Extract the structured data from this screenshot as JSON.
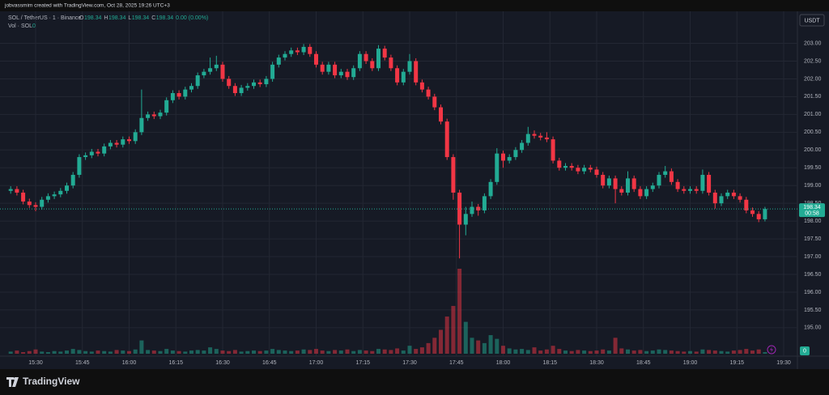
{
  "header": {
    "credit": "jobvassmim created with TradingView.com, Oct 28, 2025 19:26 UTC+3"
  },
  "brand": "TradingView",
  "chart_data": {
    "type": "candlestick",
    "symbol": "SOL / TetherUS · 1 · Binance",
    "legend": [
      {
        "key": "O",
        "value": 198.34
      },
      {
        "key": "H",
        "value": 198.34
      },
      {
        "key": "L",
        "value": 198.34
      },
      {
        "key": "C",
        "value": 198.34
      }
    ],
    "change": "0.00 (0.00%)",
    "volume_title": "Vol · SOL",
    "volume_value": 0,
    "currency": "USDT",
    "countdown": "00:58",
    "up_color": "#22ab94",
    "down_color": "#f23645",
    "grid": true,
    "ylim": [
      194.2,
      203.9
    ],
    "yticks": [
      {
        "value": 195,
        "label": "195.00"
      },
      {
        "value": 195.5,
        "label": "195.50"
      },
      {
        "value": 196,
        "label": "196.00"
      },
      {
        "value": 196.5,
        "label": "196.50"
      },
      {
        "value": 197,
        "label": "197.00"
      },
      {
        "value": 197.5,
        "label": "197.50"
      },
      {
        "value": 198,
        "label": "198.00"
      },
      {
        "value": 198.5,
        "label": "198.50"
      },
      {
        "value": 199,
        "label": "199.00"
      },
      {
        "value": 199.5,
        "label": "199.50"
      },
      {
        "value": 200,
        "label": "200.00"
      },
      {
        "value": 200.5,
        "label": "200.50"
      },
      {
        "value": 201,
        "label": "201.00"
      },
      {
        "value": 201.5,
        "label": "201.50"
      },
      {
        "value": 202,
        "label": "202.00"
      },
      {
        "value": 202.5,
        "label": "202.50"
      },
      {
        "value": 203,
        "label": "203.00"
      }
    ],
    "xticks": [
      {
        "value": 4,
        "label": "15:30"
      },
      {
        "value": 11.5,
        "label": "15:45"
      },
      {
        "value": 19,
        "label": "16:00"
      },
      {
        "value": 26.5,
        "label": "16:15"
      },
      {
        "value": 34,
        "label": "16:30"
      },
      {
        "value": 41.5,
        "label": "16:45"
      },
      {
        "value": 49,
        "label": "17:00"
      },
      {
        "value": 56.5,
        "label": "17:15"
      },
      {
        "value": 64,
        "label": "17:30"
      },
      {
        "value": 71.5,
        "label": "17:45"
      },
      {
        "value": 79,
        "label": "18:00"
      },
      {
        "value": 86.5,
        "label": "18:15"
      },
      {
        "value": 94,
        "label": "18:30"
      },
      {
        "value": 101.5,
        "label": "18:45"
      },
      {
        "value": 109,
        "label": "19:00"
      },
      {
        "value": 116.5,
        "label": "19:15"
      },
      {
        "value": 124,
        "label": "19:30"
      }
    ],
    "ohlc": [
      [
        198.85,
        198.98,
        198.77,
        198.9
      ],
      [
        198.9,
        198.98,
        198.72,
        198.8
      ],
      [
        198.8,
        198.88,
        198.47,
        198.55
      ],
      [
        198.55,
        198.63,
        198.37,
        198.45
      ],
      [
        198.45,
        198.53,
        198.28,
        198.4
      ],
      [
        198.4,
        198.68,
        198.32,
        198.6
      ],
      [
        198.6,
        198.78,
        198.52,
        198.7
      ],
      [
        198.7,
        198.83,
        198.62,
        198.75
      ],
      [
        198.75,
        198.93,
        198.67,
        198.85
      ],
      [
        198.85,
        199.08,
        198.77,
        199.0
      ],
      [
        199.0,
        199.38,
        198.92,
        199.3
      ],
      [
        199.3,
        199.88,
        199.22,
        199.8
      ],
      [
        199.8,
        199.93,
        199.72,
        199.85
      ],
      [
        199.85,
        200.03,
        199.77,
        199.95
      ],
      [
        199.95,
        200.03,
        199.82,
        199.9
      ],
      [
        199.9,
        200.18,
        199.82,
        200.1
      ],
      [
        200.1,
        200.28,
        200.02,
        200.2
      ],
      [
        200.2,
        200.28,
        200.07,
        200.15
      ],
      [
        200.15,
        200.38,
        200.07,
        200.3
      ],
      [
        200.3,
        200.38,
        200.17,
        200.25
      ],
      [
        200.25,
        200.58,
        200.17,
        200.5
      ],
      [
        200.5,
        201.7,
        200.42,
        200.9
      ],
      [
        200.9,
        201.08,
        200.82,
        201.0
      ],
      [
        201.0,
        201.08,
        200.87,
        200.95
      ],
      [
        200.95,
        201.13,
        200.87,
        201.05
      ],
      [
        201.05,
        201.48,
        200.97,
        201.4
      ],
      [
        201.4,
        201.68,
        201.32,
        201.6
      ],
      [
        201.6,
        201.68,
        201.42,
        201.5
      ],
      [
        201.5,
        201.78,
        201.42,
        201.7
      ],
      [
        201.7,
        201.88,
        201.62,
        201.8
      ],
      [
        201.8,
        202.18,
        201.72,
        202.1
      ],
      [
        202.1,
        202.28,
        202.02,
        202.2
      ],
      [
        202.2,
        202.6,
        202.12,
        202.3
      ],
      [
        202.3,
        202.65,
        202.22,
        202.4
      ],
      [
        202.4,
        202.48,
        201.92,
        202.0
      ],
      [
        202.0,
        202.08,
        201.72,
        201.8
      ],
      [
        201.8,
        201.88,
        201.52,
        201.6
      ],
      [
        201.6,
        201.83,
        201.52,
        201.75
      ],
      [
        201.75,
        201.88,
        201.67,
        201.8
      ],
      [
        201.8,
        201.98,
        201.72,
        201.9
      ],
      [
        201.9,
        201.98,
        201.77,
        201.85
      ],
      [
        201.85,
        202.08,
        201.77,
        202.0
      ],
      [
        202.0,
        202.48,
        201.92,
        202.4
      ],
      [
        202.4,
        202.68,
        202.32,
        202.6
      ],
      [
        202.6,
        202.78,
        202.52,
        202.7
      ],
      [
        202.7,
        202.88,
        202.62,
        202.8
      ],
      [
        202.8,
        202.88,
        202.67,
        202.75
      ],
      [
        202.75,
        202.98,
        202.67,
        202.9
      ],
      [
        202.9,
        202.98,
        202.62,
        202.7
      ],
      [
        202.7,
        202.78,
        202.32,
        202.4
      ],
      [
        202.4,
        202.48,
        202.12,
        202.2
      ],
      [
        202.2,
        202.48,
        202.12,
        202.4
      ],
      [
        202.4,
        202.48,
        202.02,
        202.1
      ],
      [
        202.1,
        202.28,
        202.02,
        202.2
      ],
      [
        202.2,
        202.28,
        201.97,
        202.05
      ],
      [
        202.05,
        202.38,
        201.97,
        202.3
      ],
      [
        202.3,
        202.78,
        202.22,
        202.7
      ],
      [
        202.7,
        202.78,
        202.42,
        202.5
      ],
      [
        202.5,
        202.58,
        202.22,
        202.3
      ],
      [
        202.3,
        202.95,
        202.22,
        202.85
      ],
      [
        202.85,
        202.93,
        202.52,
        202.6
      ],
      [
        202.6,
        202.68,
        202.22,
        202.3
      ],
      [
        202.3,
        202.38,
        201.82,
        201.9
      ],
      [
        201.9,
        202.28,
        201.82,
        202.2
      ],
      [
        202.2,
        202.7,
        202.12,
        202.5
      ],
      [
        202.5,
        202.58,
        201.82,
        201.9
      ],
      [
        201.9,
        201.98,
        201.62,
        201.7
      ],
      [
        201.7,
        201.78,
        201.42,
        201.5
      ],
      [
        201.5,
        201.58,
        201.12,
        201.2
      ],
      [
        201.2,
        201.28,
        200.72,
        200.8
      ],
      [
        200.8,
        200.88,
        199.72,
        199.8
      ],
      [
        199.8,
        199.88,
        198.6,
        198.8
      ],
      [
        198.8,
        198.88,
        196.95,
        197.9
      ],
      [
        197.9,
        198.4,
        197.6,
        198.2
      ],
      [
        198.2,
        198.55,
        198.12,
        198.4
      ],
      [
        198.4,
        198.48,
        198.15,
        198.3
      ],
      [
        198.3,
        198.78,
        198.22,
        198.7
      ],
      [
        198.7,
        199.18,
        198.62,
        199.1
      ],
      [
        199.1,
        200.05,
        199.02,
        199.9
      ],
      [
        199.9,
        199.98,
        199.5,
        199.7
      ],
      [
        199.7,
        199.88,
        199.62,
        199.8
      ],
      [
        199.8,
        200.08,
        199.72,
        200.0
      ],
      [
        200.0,
        200.28,
        199.92,
        200.2
      ],
      [
        200.2,
        200.65,
        200.12,
        200.45
      ],
      [
        200.45,
        200.55,
        200.32,
        200.4
      ],
      [
        200.4,
        200.48,
        200.27,
        200.35
      ],
      [
        200.35,
        200.5,
        200.22,
        200.3
      ],
      [
        200.3,
        200.38,
        199.62,
        199.7
      ],
      [
        199.7,
        199.78,
        199.42,
        199.5
      ],
      [
        199.5,
        199.63,
        199.42,
        199.55
      ],
      [
        199.55,
        199.63,
        199.42,
        199.5
      ],
      [
        199.5,
        199.58,
        199.32,
        199.4
      ],
      [
        199.4,
        199.58,
        199.32,
        199.5
      ],
      [
        199.5,
        199.58,
        199.37,
        199.45
      ],
      [
        199.45,
        199.53,
        199.22,
        199.3
      ],
      [
        199.3,
        199.38,
        198.92,
        199.0
      ],
      [
        199.0,
        199.28,
        198.92,
        199.2
      ],
      [
        199.2,
        199.28,
        198.5,
        198.9
      ],
      [
        198.9,
        198.98,
        198.72,
        198.8
      ],
      [
        198.8,
        199.4,
        198.72,
        199.2
      ],
      [
        199.2,
        199.28,
        198.82,
        198.9
      ],
      [
        198.9,
        198.98,
        198.62,
        198.7
      ],
      [
        198.7,
        198.98,
        198.62,
        198.9
      ],
      [
        198.9,
        199.08,
        198.82,
        199.0
      ],
      [
        199.0,
        199.38,
        198.92,
        199.3
      ],
      [
        199.3,
        199.55,
        199.22,
        199.4
      ],
      [
        199.4,
        199.48,
        199.02,
        199.1
      ],
      [
        199.1,
        199.18,
        198.82,
        198.9
      ],
      [
        198.9,
        198.98,
        198.77,
        198.85
      ],
      [
        198.85,
        198.98,
        198.77,
        198.9
      ],
      [
        198.9,
        198.98,
        198.77,
        198.85
      ],
      [
        198.85,
        199.45,
        198.77,
        199.3
      ],
      [
        199.3,
        199.38,
        198.72,
        198.8
      ],
      [
        198.8,
        198.88,
        198.35,
        198.5
      ],
      [
        198.5,
        198.78,
        198.42,
        198.7
      ],
      [
        198.7,
        198.88,
        198.62,
        198.8
      ],
      [
        198.8,
        198.88,
        198.62,
        198.7
      ],
      [
        198.7,
        198.78,
        198.52,
        198.6
      ],
      [
        198.6,
        198.68,
        198.22,
        198.3
      ],
      [
        198.3,
        198.38,
        198.12,
        198.2
      ],
      [
        198.2,
        198.28,
        197.97,
        198.05
      ],
      [
        198.05,
        198.4,
        197.99,
        198.34
      ]
    ],
    "volume": [
      40,
      60,
      30,
      50,
      80,
      40,
      30,
      50,
      40,
      60,
      90,
      70,
      50,
      40,
      60,
      50,
      40,
      70,
      60,
      50,
      80,
      250,
      70,
      60,
      50,
      90,
      60,
      50,
      40,
      60,
      70,
      60,
      120,
      90,
      60,
      50,
      70,
      40,
      50,
      60,
      50,
      60,
      90,
      70,
      60,
      50,
      60,
      80,
      70,
      90,
      60,
      50,
      70,
      60,
      80,
      50,
      70,
      60,
      50,
      90,
      80,
      70,
      100,
      60,
      150,
      90,
      120,
      200,
      300,
      450,
      700,
      900,
      1600,
      600,
      300,
      250,
      200,
      350,
      280,
      150,
      100,
      80,
      90,
      70,
      120,
      60,
      80,
      150,
      90,
      60,
      50,
      70,
      60,
      50,
      60,
      80,
      60,
      300,
      100,
      80,
      60,
      70,
      50,
      60,
      80,
      70,
      60,
      50,
      40,
      50,
      40,
      80,
      70,
      60,
      50,
      40,
      60,
      70,
      90,
      60,
      80,
      30
    ]
  }
}
